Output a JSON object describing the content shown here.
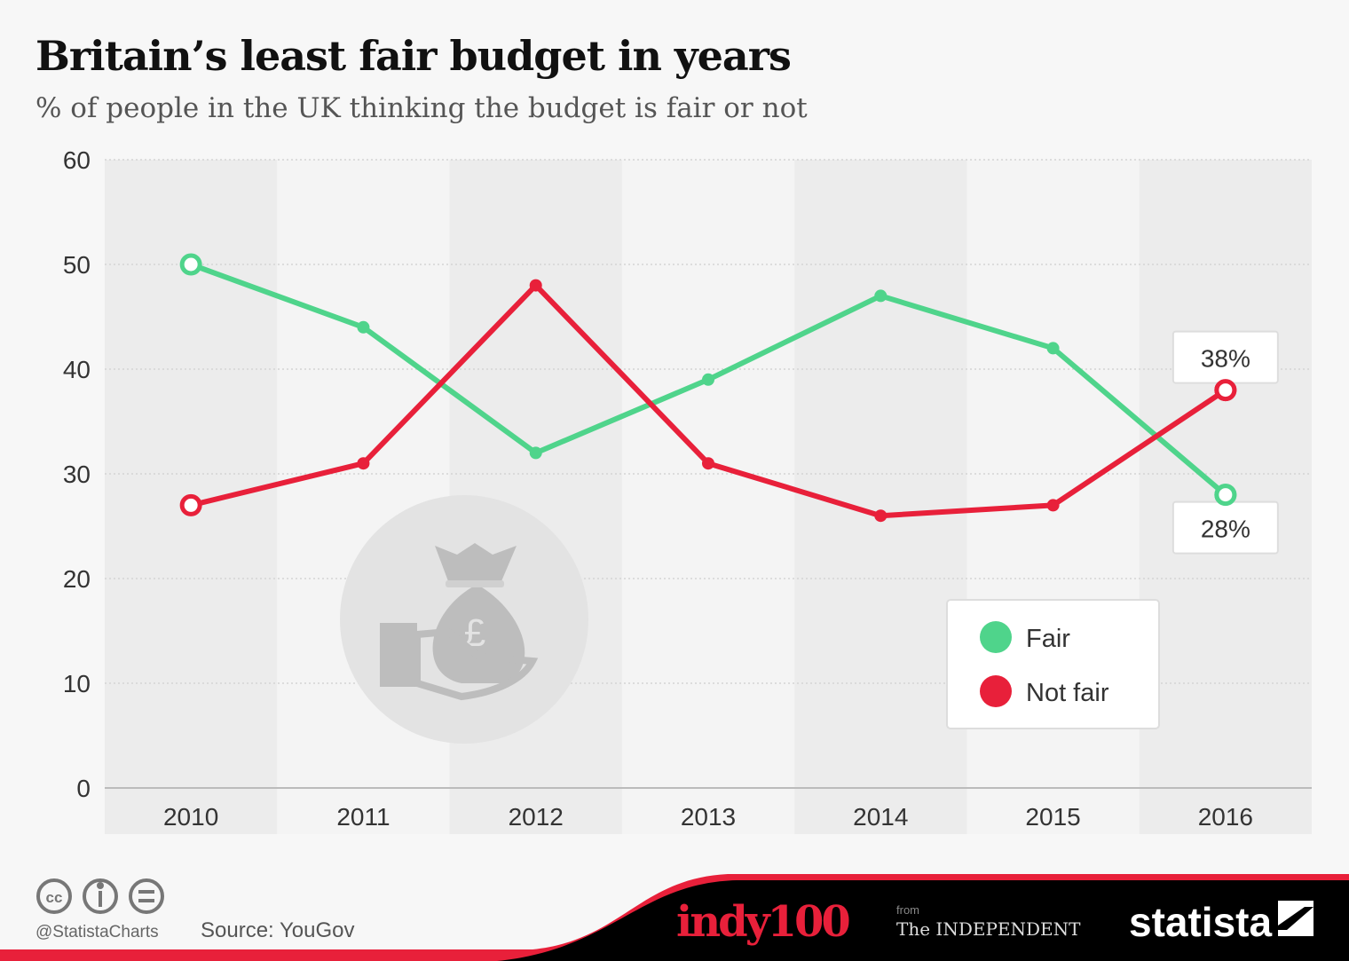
{
  "chart_data": {
    "type": "line",
    "title": "Britain’s least fair budget in years",
    "subtitle": "% of people in the UK thinking the budget is fair or not",
    "categories": [
      "2010",
      "2011",
      "2012",
      "2013",
      "2014",
      "2015",
      "2016"
    ],
    "ylim": [
      0,
      60
    ],
    "yticks": [
      0,
      10,
      20,
      30,
      40,
      50,
      60
    ],
    "grid": true,
    "legend_position": "bottom-right",
    "series": [
      {
        "name": "Fair",
        "color": "#4fd48b",
        "values": [
          50,
          44,
          32,
          39,
          47,
          42,
          28
        ]
      },
      {
        "name": "Not fair",
        "color": "#e8203a",
        "values": [
          27,
          31,
          48,
          31,
          26,
          27,
          38
        ]
      }
    ],
    "annotations": [
      {
        "series": "Not fair",
        "category": "2016",
        "label": "38%",
        "placement": "above"
      },
      {
        "series": "Fair",
        "category": "2016",
        "label": "28%",
        "placement": "below"
      }
    ]
  },
  "footer": {
    "handle": "@StatistaCharts",
    "source": "Source: YouGov",
    "logo_indy": "indy100",
    "logo_from": "from",
    "logo_independent": "The INDEPENDENT",
    "logo_statista": "statista"
  }
}
